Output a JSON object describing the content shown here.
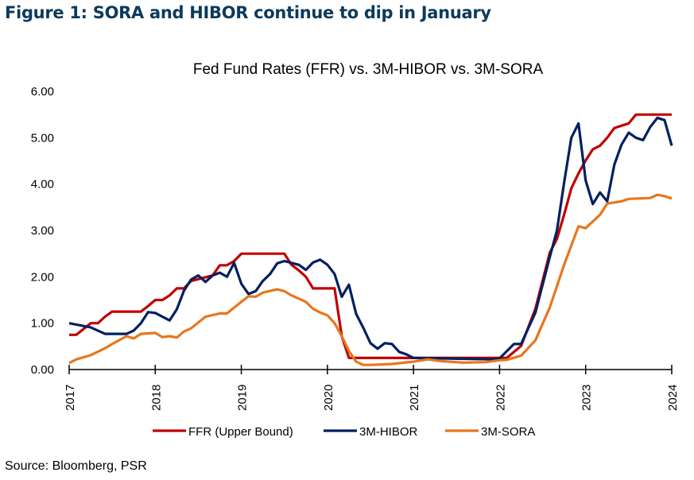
{
  "figure_title": "Figure 1: SORA and HIBOR continue to dip in January",
  "source": "Source: Bloomberg, PSR",
  "chart_data": {
    "type": "line",
    "title": "Fed Fund Rates (FFR) vs. 3M-HIBOR vs. 3M-SORA",
    "xlabel": "",
    "ylabel": "",
    "xlim": [
      "2017-01",
      "2024-01"
    ],
    "ylim": [
      0,
      6
    ],
    "x_ticks": [
      "2017",
      "2018",
      "2019",
      "2020",
      "2021",
      "2022",
      "2023",
      "2024"
    ],
    "y_ticks": [
      "0.00",
      "1.00",
      "2.00",
      "3.00",
      "4.00",
      "5.00",
      "6.00"
    ],
    "grid": false,
    "legend_position": "bottom",
    "series": [
      {
        "name": "FFR (Upper Bound)",
        "color": "#C00000",
        "points": [
          [
            "2017-01",
            0.75
          ],
          [
            "2017-02",
            0.75
          ],
          [
            "2017-04",
            1.0
          ],
          [
            "2017-05",
            1.0
          ],
          [
            "2017-06",
            1.14
          ],
          [
            "2017-07",
            1.25
          ],
          [
            "2017-11",
            1.25
          ],
          [
            "2017-12",
            1.37
          ],
          [
            "2018-01",
            1.5
          ],
          [
            "2018-02",
            1.5
          ],
          [
            "2018-03",
            1.6
          ],
          [
            "2018-04",
            1.75
          ],
          [
            "2018-05",
            1.75
          ],
          [
            "2018-06",
            1.91
          ],
          [
            "2018-09",
            2.03
          ],
          [
            "2018-10",
            2.25
          ],
          [
            "2018-11",
            2.25
          ],
          [
            "2018-12",
            2.34
          ],
          [
            "2019-01",
            2.5
          ],
          [
            "2019-07",
            2.5
          ],
          [
            "2019-08",
            2.26
          ],
          [
            "2019-09",
            2.14
          ],
          [
            "2019-10",
            2.0
          ],
          [
            "2019-11",
            1.75
          ],
          [
            "2020-02",
            1.75
          ],
          [
            "2020-03",
            0.72
          ],
          [
            "2020-04",
            0.25
          ],
          [
            "2022-02",
            0.25
          ],
          [
            "2022-04",
            0.51
          ],
          [
            "2022-06",
            1.31
          ],
          [
            "2022-08",
            2.52
          ],
          [
            "2022-09",
            2.82
          ],
          [
            "2022-10",
            3.34
          ],
          [
            "2022-11",
            3.91
          ],
          [
            "2022-12",
            4.23
          ],
          [
            "2023-01",
            4.51
          ],
          [
            "2023-02",
            4.75
          ],
          [
            "2023-03",
            4.83
          ],
          [
            "2023-04",
            5.0
          ],
          [
            "2023-05",
            5.21
          ],
          [
            "2023-06",
            5.26
          ],
          [
            "2023-07",
            5.31
          ],
          [
            "2023-08",
            5.5
          ],
          [
            "2024-01",
            5.5
          ]
        ]
      },
      {
        "name": "3M-HIBOR",
        "color": "#002060",
        "points": [
          [
            "2017-01",
            1.0
          ],
          [
            "2017-04",
            0.91
          ],
          [
            "2017-06",
            0.77
          ],
          [
            "2017-09",
            0.77
          ],
          [
            "2017-10",
            0.84
          ],
          [
            "2017-11",
            1.0
          ],
          [
            "2017-12",
            1.24
          ],
          [
            "2018-01",
            1.22
          ],
          [
            "2018-03",
            1.06
          ],
          [
            "2018-04",
            1.3
          ],
          [
            "2018-05",
            1.7
          ],
          [
            "2018-06",
            1.94
          ],
          [
            "2018-07",
            2.03
          ],
          [
            "2018-08",
            1.89
          ],
          [
            "2018-09",
            2.03
          ],
          [
            "2018-10",
            2.09
          ],
          [
            "2018-11",
            2.0
          ],
          [
            "2018-12",
            2.3
          ],
          [
            "2019-01",
            1.85
          ],
          [
            "2019-02",
            1.63
          ],
          [
            "2019-03",
            1.69
          ],
          [
            "2019-04",
            1.91
          ],
          [
            "2019-05",
            2.06
          ],
          [
            "2019-06",
            2.29
          ],
          [
            "2019-07",
            2.34
          ],
          [
            "2019-09",
            2.26
          ],
          [
            "2019-10",
            2.15
          ],
          [
            "2019-11",
            2.31
          ],
          [
            "2019-12",
            2.37
          ],
          [
            "2020-01",
            2.26
          ],
          [
            "2020-02",
            2.06
          ],
          [
            "2020-03",
            1.57
          ],
          [
            "2020-04",
            1.83
          ],
          [
            "2020-05",
            1.2
          ],
          [
            "2020-06",
            0.9
          ],
          [
            "2020-07",
            0.57
          ],
          [
            "2020-08",
            0.45
          ],
          [
            "2020-09",
            0.57
          ],
          [
            "2020-10",
            0.55
          ],
          [
            "2020-11",
            0.38
          ],
          [
            "2020-12",
            0.33
          ],
          [
            "2021-01",
            0.25
          ],
          [
            "2021-12",
            0.22
          ],
          [
            "2022-01",
            0.24
          ],
          [
            "2022-03",
            0.55
          ],
          [
            "2022-04",
            0.55
          ],
          [
            "2022-06",
            1.23
          ],
          [
            "2022-08",
            2.43
          ],
          [
            "2022-09",
            3.0
          ],
          [
            "2022-10",
            4.03
          ],
          [
            "2022-11",
            5.0
          ],
          [
            "2022-12",
            5.31
          ],
          [
            "2023-01",
            4.08
          ],
          [
            "2023-02",
            3.57
          ],
          [
            "2023-03",
            3.82
          ],
          [
            "2023-04",
            3.63
          ],
          [
            "2023-05",
            4.42
          ],
          [
            "2023-06",
            4.85
          ],
          [
            "2023-07",
            5.11
          ],
          [
            "2023-08",
            5.0
          ],
          [
            "2023-09",
            4.95
          ],
          [
            "2023-10",
            5.23
          ],
          [
            "2023-11",
            5.43
          ],
          [
            "2023-12",
            5.38
          ],
          [
            "2024-01",
            4.83
          ]
        ]
      },
      {
        "name": "3M-SORA",
        "color": "#E8761E",
        "points": [
          [
            "2017-01",
            0.14
          ],
          [
            "2017-02",
            0.22
          ],
          [
            "2017-04",
            0.31
          ],
          [
            "2017-06",
            0.46
          ],
          [
            "2017-07",
            0.55
          ],
          [
            "2017-09",
            0.72
          ],
          [
            "2017-10",
            0.67
          ],
          [
            "2017-11",
            0.77
          ],
          [
            "2018-01",
            0.79
          ],
          [
            "2018-02",
            0.7
          ],
          [
            "2018-03",
            0.72
          ],
          [
            "2018-04",
            0.69
          ],
          [
            "2018-05",
            0.82
          ],
          [
            "2018-06",
            0.89
          ],
          [
            "2018-08",
            1.14
          ],
          [
            "2018-10",
            1.21
          ],
          [
            "2018-11",
            1.21
          ],
          [
            "2019-01",
            1.46
          ],
          [
            "2019-02",
            1.58
          ],
          [
            "2019-03",
            1.57
          ],
          [
            "2019-04",
            1.66
          ],
          [
            "2019-06",
            1.73
          ],
          [
            "2019-07",
            1.69
          ],
          [
            "2019-08",
            1.6
          ],
          [
            "2019-10",
            1.46
          ],
          [
            "2019-11",
            1.31
          ],
          [
            "2019-12",
            1.23
          ],
          [
            "2020-01",
            1.17
          ],
          [
            "2020-02",
            1.0
          ],
          [
            "2020-03",
            0.72
          ],
          [
            "2020-04",
            0.4
          ],
          [
            "2020-05",
            0.17
          ],
          [
            "2020-06",
            0.1
          ],
          [
            "2020-07",
            0.1
          ],
          [
            "2020-10",
            0.12
          ],
          [
            "2021-01",
            0.17
          ],
          [
            "2021-03",
            0.22
          ],
          [
            "2021-05",
            0.18
          ],
          [
            "2021-08",
            0.15
          ],
          [
            "2021-11",
            0.16
          ],
          [
            "2022-01",
            0.2
          ],
          [
            "2022-02",
            0.21
          ],
          [
            "2022-04",
            0.3
          ],
          [
            "2022-06",
            0.63
          ],
          [
            "2022-08",
            1.34
          ],
          [
            "2022-10",
            2.26
          ],
          [
            "2022-12",
            3.09
          ],
          [
            "2023-01",
            3.05
          ],
          [
            "2023-03",
            3.34
          ],
          [
            "2023-04",
            3.58
          ],
          [
            "2023-06",
            3.63
          ],
          [
            "2023-07",
            3.68
          ],
          [
            "2023-10",
            3.7
          ],
          [
            "2023-11",
            3.77
          ],
          [
            "2023-12",
            3.74
          ],
          [
            "2024-01",
            3.69
          ]
        ]
      }
    ]
  }
}
